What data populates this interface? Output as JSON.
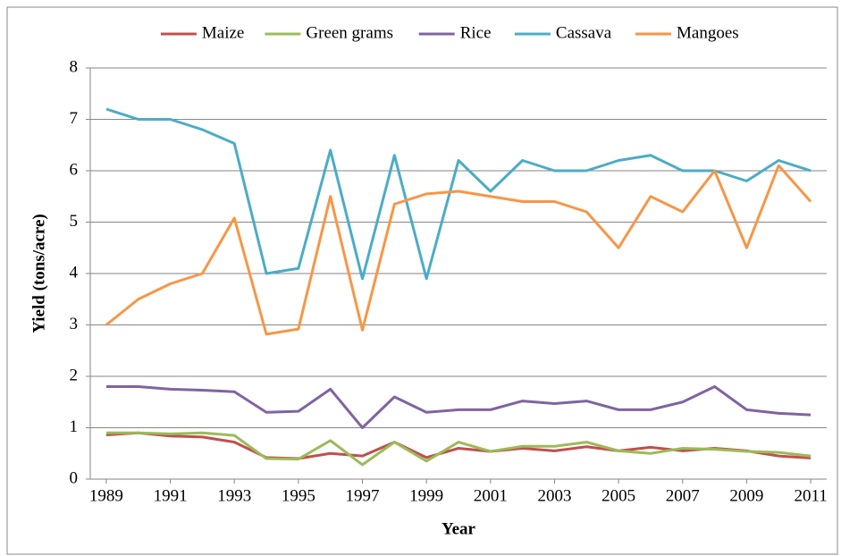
{
  "chart_data": {
    "type": "line",
    "x_label": "Year",
    "y_label": "Yield (tons/acre)",
    "x": [
      1989,
      1990,
      1991,
      1992,
      1993,
      1994,
      1995,
      1996,
      1997,
      1998,
      1999,
      2000,
      2001,
      2002,
      2003,
      2004,
      2005,
      2006,
      2007,
      2008,
      2009,
      2010,
      2011
    ],
    "series": [
      {
        "name": "Maize",
        "color": "#c0504d",
        "values": [
          0.86,
          0.9,
          0.84,
          0.82,
          0.72,
          0.42,
          0.4,
          0.5,
          0.45,
          0.72,
          0.42,
          0.6,
          0.54,
          0.6,
          0.55,
          0.63,
          0.55,
          0.62,
          0.55,
          0.6,
          0.55,
          0.45,
          0.41
        ]
      },
      {
        "name": "Green grams",
        "color": "#9bbb59",
        "values": [
          0.9,
          0.9,
          0.88,
          0.9,
          0.85,
          0.4,
          0.39,
          0.75,
          0.28,
          0.72,
          0.35,
          0.72,
          0.54,
          0.64,
          0.64,
          0.72,
          0.55,
          0.5,
          0.6,
          0.58,
          0.54,
          0.52,
          0.45
        ]
      },
      {
        "name": "Rice",
        "color": "#8064a2",
        "values": [
          1.8,
          1.8,
          1.75,
          1.73,
          1.7,
          1.3,
          1.32,
          1.75,
          1.0,
          1.6,
          1.3,
          1.35,
          1.35,
          1.52,
          1.47,
          1.52,
          1.35,
          1.35,
          1.5,
          1.8,
          1.35,
          1.28,
          1.25
        ]
      },
      {
        "name": "Cassava",
        "color": "#4bacc6",
        "values": [
          7.2,
          7.0,
          7.0,
          6.8,
          6.53,
          4.0,
          4.1,
          6.4,
          3.9,
          6.3,
          3.9,
          6.2,
          5.6,
          6.2,
          6.0,
          6.0,
          6.2,
          6.3,
          6.0,
          6.0,
          5.8,
          6.2,
          6.0
        ]
      },
      {
        "name": "Mangoes",
        "color": "#f79646",
        "values": [
          3.0,
          3.5,
          3.8,
          4.0,
          5.08,
          2.82,
          2.92,
          5.5,
          2.9,
          5.35,
          5.55,
          5.6,
          5.5,
          5.4,
          5.4,
          5.2,
          4.5,
          5.5,
          5.2,
          6.0,
          4.5,
          6.1,
          5.4
        ]
      }
    ],
    "xlim": [
      1988.5,
      2011.5
    ],
    "xticks": [
      1989,
      1991,
      1993,
      1995,
      1997,
      1999,
      2001,
      2003,
      2005,
      2007,
      2009,
      2011
    ],
    "ylim": [
      0,
      8
    ],
    "yticks": [
      0,
      1,
      2,
      3,
      4,
      5,
      6,
      7,
      8
    ],
    "grid": true,
    "legend": "top"
  }
}
